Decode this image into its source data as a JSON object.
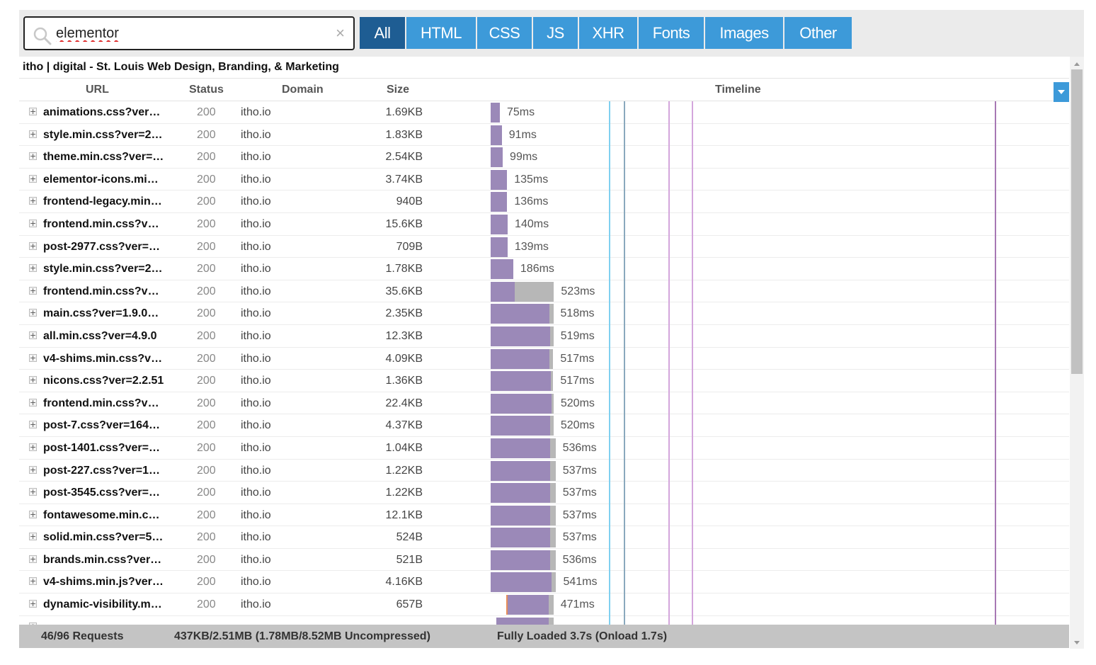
{
  "search": {
    "value": "elementor",
    "clear_glyph": "×"
  },
  "filter_tabs": [
    "All",
    "HTML",
    "CSS",
    "JS",
    "XHR",
    "Fonts",
    "Images",
    "Other"
  ],
  "active_tab": "All",
  "page_title": "itho | digital - St. Louis Web Design, Branding, & Marketing",
  "columns": {
    "url": "URL",
    "status": "Status",
    "domain": "Domain",
    "size": "Size",
    "timeline": "Timeline"
  },
  "colors": {
    "tab": "#3d9ad9",
    "tab_active": "#1e5d93",
    "receive_bar": "#9b89b8",
    "wait_bar": "#b7b7b7",
    "dns_bar": "#e88f5a",
    "marker_lightblue": "#7fd0f0",
    "marker_steel": "#8aa9bd",
    "marker_pink": "#d4a6dc",
    "marker_purple": "#a778b4"
  },
  "timeline_scale_ms": 7000,
  "timeline_markers_ms": [
    1000,
    1100,
    1500,
    1650,
    3700
  ],
  "requests": [
    {
      "url": "animations.css?ver…",
      "status": "200",
      "domain": "itho.io",
      "size": "1.69KB",
      "start_ms": 10,
      "wait_ms": 0,
      "recv_ms": 75,
      "duration": "75ms"
    },
    {
      "url": "style.min.css?ver=2…",
      "status": "200",
      "domain": "itho.io",
      "size": "1.83KB",
      "start_ms": 10,
      "wait_ms": 0,
      "recv_ms": 91,
      "duration": "91ms"
    },
    {
      "url": "theme.min.css?ver=…",
      "status": "200",
      "domain": "itho.io",
      "size": "2.54KB",
      "start_ms": 10,
      "wait_ms": 0,
      "recv_ms": 99,
      "duration": "99ms"
    },
    {
      "url": "elementor-icons.mi…",
      "status": "200",
      "domain": "itho.io",
      "size": "3.74KB",
      "start_ms": 10,
      "wait_ms": 0,
      "recv_ms": 135,
      "duration": "135ms"
    },
    {
      "url": "frontend-legacy.min…",
      "status": "200",
      "domain": "itho.io",
      "size": "940B",
      "start_ms": 10,
      "wait_ms": 0,
      "recv_ms": 136,
      "duration": "136ms"
    },
    {
      "url": "frontend.min.css?v…",
      "status": "200",
      "domain": "itho.io",
      "size": "15.6KB",
      "start_ms": 10,
      "wait_ms": 0,
      "recv_ms": 140,
      "duration": "140ms"
    },
    {
      "url": "post-2977.css?ver=…",
      "status": "200",
      "domain": "itho.io",
      "size": "709B",
      "start_ms": 10,
      "wait_ms": 0,
      "recv_ms": 139,
      "duration": "139ms"
    },
    {
      "url": "style.min.css?ver=2…",
      "status": "200",
      "domain": "itho.io",
      "size": "1.78KB",
      "start_ms": 10,
      "wait_ms": 0,
      "recv_ms": 186,
      "duration": "186ms"
    },
    {
      "url": "frontend.min.css?v…",
      "status": "200",
      "domain": "itho.io",
      "size": "35.6KB",
      "start_ms": 10,
      "wait_ms": 0,
      "recv_ms": 523,
      "duration": "523ms",
      "recv_first_ms": 200
    },
    {
      "url": "main.css?ver=1.9.0…",
      "status": "200",
      "domain": "itho.io",
      "size": "2.35KB",
      "start_ms": 10,
      "wait_ms": 0,
      "recv_ms": 518,
      "duration": "518ms",
      "recv_first_ms": 488
    },
    {
      "url": "all.min.css?ver=4.9.0",
      "status": "200",
      "domain": "itho.io",
      "size": "12.3KB",
      "start_ms": 10,
      "wait_ms": 0,
      "recv_ms": 519,
      "duration": "519ms",
      "recv_first_ms": 490
    },
    {
      "url": "v4-shims.min.css?v…",
      "status": "200",
      "domain": "itho.io",
      "size": "4.09KB",
      "start_ms": 10,
      "wait_ms": 0,
      "recv_ms": 517,
      "duration": "517ms",
      "recv_first_ms": 488
    },
    {
      "url": "nicons.css?ver=2.2.51",
      "status": "200",
      "domain": "itho.io",
      "size": "1.36KB",
      "start_ms": 10,
      "wait_ms": 0,
      "recv_ms": 517,
      "duration": "517ms",
      "recv_first_ms": 500
    },
    {
      "url": "frontend.min.css?v…",
      "status": "200",
      "domain": "itho.io",
      "size": "22.4KB",
      "start_ms": 10,
      "wait_ms": 0,
      "recv_ms": 520,
      "duration": "520ms",
      "recv_first_ms": 505
    },
    {
      "url": "post-7.css?ver=164…",
      "status": "200",
      "domain": "itho.io",
      "size": "4.37KB",
      "start_ms": 10,
      "wait_ms": 0,
      "recv_ms": 520,
      "duration": "520ms",
      "recv_first_ms": 490
    },
    {
      "url": "post-1401.css?ver=…",
      "status": "200",
      "domain": "itho.io",
      "size": "1.04KB",
      "start_ms": 10,
      "wait_ms": 0,
      "recv_ms": 536,
      "duration": "536ms",
      "recv_first_ms": 492
    },
    {
      "url": "post-227.css?ver=1…",
      "status": "200",
      "domain": "itho.io",
      "size": "1.22KB",
      "start_ms": 10,
      "wait_ms": 0,
      "recv_ms": 537,
      "duration": "537ms",
      "recv_first_ms": 492
    },
    {
      "url": "post-3545.css?ver=…",
      "status": "200",
      "domain": "itho.io",
      "size": "1.22KB",
      "start_ms": 10,
      "wait_ms": 0,
      "recv_ms": 537,
      "duration": "537ms",
      "recv_first_ms": 492
    },
    {
      "url": "fontawesome.min.c…",
      "status": "200",
      "domain": "itho.io",
      "size": "12.1KB",
      "start_ms": 10,
      "wait_ms": 0,
      "recv_ms": 537,
      "duration": "537ms",
      "recv_first_ms": 492
    },
    {
      "url": "solid.min.css?ver=5…",
      "status": "200",
      "domain": "itho.io",
      "size": "524B",
      "start_ms": 10,
      "wait_ms": 0,
      "recv_ms": 537,
      "duration": "537ms",
      "recv_first_ms": 492
    },
    {
      "url": "brands.min.css?ver…",
      "status": "200",
      "domain": "itho.io",
      "size": "521B",
      "start_ms": 10,
      "wait_ms": 0,
      "recv_ms": 536,
      "duration": "536ms",
      "recv_first_ms": 492
    },
    {
      "url": "v4-shims.min.js?ver…",
      "status": "200",
      "domain": "itho.io",
      "size": "4.16KB",
      "start_ms": 10,
      "wait_ms": 0,
      "recv_ms": 541,
      "duration": "541ms",
      "recv_first_ms": 505
    },
    {
      "url": "dynamic-visibility.m…",
      "status": "200",
      "domain": "itho.io",
      "size": "657B",
      "start_ms": 80,
      "wait_ms": 0,
      "recv_ms": 471,
      "duration": "471ms",
      "recv_first_ms": 430,
      "dns": true
    },
    {
      "url": "",
      "status": "",
      "domain": "",
      "size": "",
      "start_ms": 80,
      "wait_ms": 0,
      "recv_ms": 471,
      "duration": "",
      "recv_first_ms": 430
    }
  ],
  "footer": {
    "requests": "46/96 Requests",
    "transfer": "437KB/2.51MB  (1.78MB/8.52MB Uncompressed)",
    "loaded": "Fully Loaded 3.7s  (Onload 1.7s)"
  }
}
